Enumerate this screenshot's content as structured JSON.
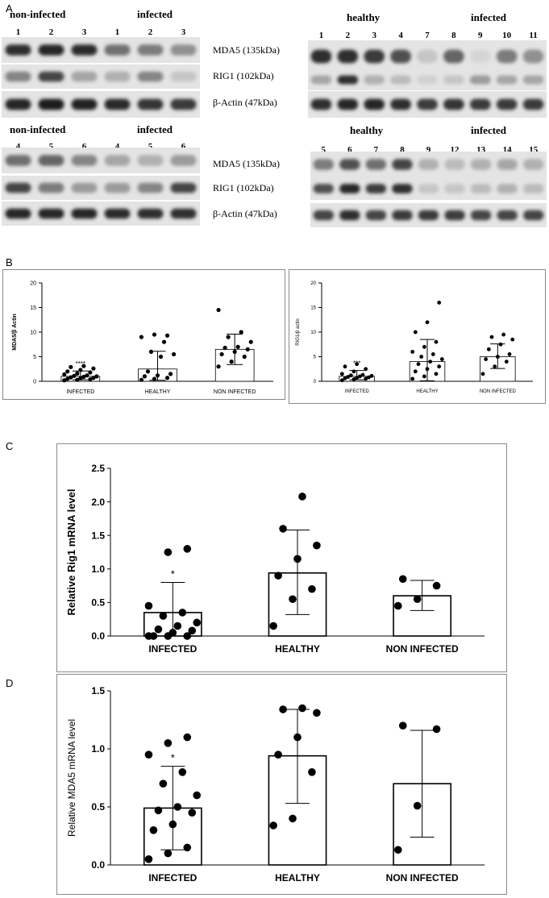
{
  "panel_letters": {
    "a": "A",
    "b": "B",
    "c": "C",
    "d": "D"
  },
  "western_blots": [
    {
      "id": "top-left",
      "group_labels": [
        "non-infected",
        "infected"
      ],
      "lanes": [
        "1",
        "2",
        "3",
        "1",
        "2",
        "3"
      ],
      "bands": {
        "mda5": [
          0.85,
          0.9,
          0.88,
          0.55,
          0.5,
          0.4
        ],
        "rig1": [
          0.45,
          0.75,
          0.3,
          0.25,
          0.45,
          0.15
        ],
        "actin": [
          0.9,
          0.95,
          0.92,
          0.88,
          0.82,
          0.8
        ]
      }
    },
    {
      "id": "top-right",
      "group_labels": [
        "healthy",
        "infected"
      ],
      "lanes": [
        "1",
        "2",
        "3",
        "4",
        "7",
        "8",
        "9",
        "10",
        "11"
      ],
      "bands": {
        "mda5": [
          0.85,
          0.85,
          0.8,
          0.7,
          0.15,
          0.6,
          0.08,
          0.5,
          0.4
        ],
        "rig1": [
          0.3,
          0.85,
          0.25,
          0.2,
          0.1,
          0.15,
          0.35,
          0.3,
          0.3
        ],
        "actin": [
          0.85,
          0.9,
          0.9,
          0.85,
          0.8,
          0.82,
          0.8,
          0.8,
          0.8
        ]
      }
    },
    {
      "id": "bottom-left",
      "group_labels": [
        "non-infected",
        "infected"
      ],
      "lanes": [
        "4",
        "5",
        "6",
        "4",
        "5",
        "6"
      ],
      "bands": {
        "mda5": [
          0.55,
          0.6,
          0.45,
          0.3,
          0.25,
          0.35
        ],
        "rig1": [
          0.75,
          0.5,
          0.35,
          0.35,
          0.45,
          0.75
        ],
        "actin": [
          0.9,
          0.9,
          0.9,
          0.88,
          0.85,
          0.85
        ]
      }
    },
    {
      "id": "bottom-right",
      "group_labels": [
        "healthy",
        "infected"
      ],
      "lanes": [
        "5",
        "6",
        "7",
        "8",
        "9",
        "12",
        "13",
        "14",
        "15"
      ],
      "bands": {
        "mda5": [
          0.5,
          0.7,
          0.55,
          0.75,
          0.25,
          0.2,
          0.25,
          0.3,
          0.25
        ],
        "rig1": [
          0.7,
          0.9,
          0.8,
          0.85,
          0.15,
          0.15,
          0.2,
          0.25,
          0.2
        ],
        "actin": [
          0.75,
          0.85,
          0.75,
          0.8,
          0.8,
          0.78,
          0.75,
          0.75,
          0.75
        ]
      }
    }
  ],
  "protein_labels": {
    "top": [
      "MDA5 (135kDa)",
      "RIG1 (102kDa)",
      "β-Actin (47kDa)"
    ],
    "bottom": [
      "MDA5 (135kDa)",
      "RIG1 (102kDa)",
      "β-Actin (47kDa)"
    ]
  },
  "chart_data": [
    {
      "id": "b-left",
      "type": "bar",
      "ylabel": "MDA5/β Actin",
      "ylim": [
        0,
        20
      ],
      "yticks": [
        "0",
        "5",
        "10",
        "15",
        "20"
      ],
      "categories": [
        "INFECTED",
        "HEALTHY",
        "NON INFECTED"
      ],
      "values": [
        1.0,
        2.5,
        6.5
      ],
      "error": [
        [
          0.3,
          2.1
        ],
        [
          0.2,
          6.1
        ],
        [
          3.4,
          9.6
        ]
      ],
      "significance": [
        "****",
        "",
        ""
      ],
      "points": [
        [
          0.2,
          0.3,
          0.4,
          0.5,
          0.6,
          0.7,
          0.8,
          0.9,
          1.0,
          1.1,
          1.2,
          1.4,
          1.6,
          1.8,
          2.0,
          2.3,
          2.6,
          2.9,
          3.1
        ],
        [
          0.3,
          0.5,
          0.7,
          1.0,
          1.2,
          1.5,
          2.0,
          5.0,
          5.5,
          6.0,
          8.0,
          9.0,
          9.5,
          9.3
        ],
        [
          3.0,
          4.0,
          5.0,
          5.5,
          6.0,
          6.5,
          6.8,
          7.0,
          8.0,
          9.0,
          10.0,
          14.5
        ]
      ]
    },
    {
      "id": "b-right",
      "type": "bar",
      "ylabel": "RIG1/β actin",
      "ylim": [
        0,
        20
      ],
      "yticks": [
        "0",
        "5",
        "10",
        "15",
        "20"
      ],
      "categories": [
        "INFECTED",
        "HEALTHY",
        "NON INFECTED"
      ],
      "values": [
        1.0,
        4.0,
        5.0
      ],
      "error": [
        [
          0.3,
          2.2
        ],
        [
          0.1,
          8.5
        ],
        [
          2.6,
          7.6
        ]
      ],
      "significance": [
        "***",
        "",
        ""
      ],
      "points": [
        [
          0.2,
          0.4,
          0.5,
          0.6,
          0.7,
          0.8,
          0.9,
          1.0,
          1.1,
          1.2,
          1.3,
          1.5,
          2.0,
          2.5,
          3.0,
          3.5
        ],
        [
          0.5,
          1.0,
          1.5,
          2.0,
          2.5,
          3.0,
          3.5,
          4.0,
          4.5,
          5.0,
          5.5,
          6.0,
          7.0,
          8.0,
          10.0,
          12.0,
          16.0
        ],
        [
          1.5,
          3.0,
          4.0,
          4.5,
          5.0,
          5.5,
          6.5,
          7.5,
          8.5,
          9.0,
          9.5
        ]
      ]
    },
    {
      "id": "c",
      "type": "bar",
      "ylabel": "Relative Rig1 mRNA level",
      "ylim": [
        0,
        2.5
      ],
      "yticks": [
        "0.0",
        "0.5",
        "1.0",
        "1.5",
        "2.0",
        "2.5"
      ],
      "categories": [
        "INFECTED",
        "HEALTHY",
        "NON INFECTED"
      ],
      "values": [
        0.35,
        0.94,
        0.6
      ],
      "error": [
        [
          0.0,
          0.8
        ],
        [
          0.32,
          1.58
        ],
        [
          0.38,
          0.83
        ]
      ],
      "significance": [
        "*",
        "",
        ""
      ],
      "points": [
        [
          0.0,
          0.0,
          0.0,
          0.0,
          0.05,
          0.08,
          0.1,
          0.15,
          0.2,
          0.3,
          0.35,
          0.45,
          1.25,
          1.3
        ],
        [
          0.15,
          0.55,
          0.7,
          0.9,
          1.15,
          1.35,
          1.6,
          2.08
        ],
        [
          0.45,
          0.55,
          0.75,
          0.85
        ]
      ]
    },
    {
      "id": "d",
      "type": "bar",
      "ylabel": "Relative MDA5 mRNA level",
      "ylim": [
        0,
        1.5
      ],
      "yticks": [
        "0.0",
        "0.5",
        "1.0",
        "1.5"
      ],
      "categories": [
        "INFECTED",
        "HEALTHY",
        "NON INFECTED"
      ],
      "values": [
        0.49,
        0.94,
        0.7
      ],
      "error": [
        [
          0.13,
          0.85
        ],
        [
          0.53,
          1.34
        ],
        [
          0.24,
          1.16
        ]
      ],
      "significance": [
        "*",
        "",
        ""
      ],
      "points": [
        [
          0.05,
          0.1,
          0.15,
          0.3,
          0.35,
          0.45,
          0.47,
          0.5,
          0.6,
          0.7,
          0.8,
          0.95,
          1.05,
          1.1
        ],
        [
          0.34,
          0.4,
          0.8,
          0.95,
          1.1,
          1.31,
          1.34,
          1.35
        ],
        [
          0.13,
          0.51,
          1.17,
          1.2
        ]
      ]
    }
  ]
}
